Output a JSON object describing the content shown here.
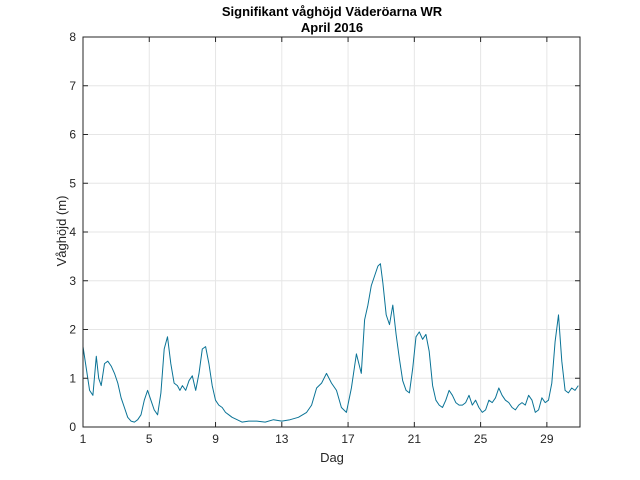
{
  "chart_data": {
    "type": "line",
    "title": "Signifikant våghöjd Väderöarna WR",
    "subtitle": "April 2016",
    "xlabel": "Dag",
    "ylabel": "Våghöjd (m)",
    "xlim": [
      1,
      31
    ],
    "ylim": [
      0,
      8
    ],
    "xticks": [
      1,
      5,
      9,
      13,
      17,
      21,
      25,
      29
    ],
    "yticks": [
      0,
      1,
      2,
      3,
      4,
      5,
      6,
      7,
      8
    ],
    "grid": true,
    "legend": "none",
    "colors": {
      "series": "#0a7396",
      "grid": "#e6e6e6",
      "axis": "#262626"
    },
    "series": [
      {
        "x": [
          1.0,
          1.2,
          1.4,
          1.6,
          1.8,
          1.95,
          2.1,
          2.3,
          2.5,
          2.7,
          2.9,
          3.1,
          3.3,
          3.5,
          3.7,
          3.9,
          4.1,
          4.3,
          4.5,
          4.7,
          4.9,
          5.1,
          5.3,
          5.5,
          5.7,
          5.9,
          6.1,
          6.3,
          6.5,
          6.7,
          6.85,
          7.0,
          7.2,
          7.4,
          7.6,
          7.8,
          8.0,
          8.2,
          8.4,
          8.6,
          8.8,
          9.0,
          9.2,
          9.4,
          9.6,
          9.8,
          10.0,
          10.3,
          10.6,
          11.0,
          11.5,
          12.0,
          12.5,
          13.0,
          13.5,
          14.0,
          14.5,
          14.8,
          15.1,
          15.4,
          15.7,
          16.0,
          16.3,
          16.6,
          16.9,
          17.2,
          17.5,
          17.8,
          18.0,
          18.2,
          18.4,
          18.6,
          18.8,
          18.95,
          19.1,
          19.3,
          19.5,
          19.7,
          19.9,
          20.1,
          20.3,
          20.5,
          20.7,
          20.9,
          21.1,
          21.3,
          21.5,
          21.7,
          21.9,
          22.1,
          22.3,
          22.5,
          22.7,
          22.9,
          23.1,
          23.3,
          23.5,
          23.7,
          23.9,
          24.1,
          24.3,
          24.5,
          24.7,
          24.9,
          25.1,
          25.3,
          25.5,
          25.7,
          25.9,
          26.1,
          26.3,
          26.5,
          26.7,
          26.9,
          27.1,
          27.3,
          27.5,
          27.7,
          27.9,
          28.1,
          28.3,
          28.5,
          28.7,
          28.9,
          29.1,
          29.3,
          29.5,
          29.7,
          29.9,
          30.1,
          30.3,
          30.5,
          30.7,
          30.9
        ],
        "y": [
          1.65,
          1.2,
          0.75,
          0.65,
          1.45,
          1.0,
          0.85,
          1.3,
          1.35,
          1.25,
          1.1,
          0.9,
          0.6,
          0.4,
          0.2,
          0.12,
          0.1,
          0.15,
          0.25,
          0.55,
          0.75,
          0.55,
          0.35,
          0.25,
          0.7,
          1.6,
          1.85,
          1.3,
          0.9,
          0.85,
          0.75,
          0.85,
          0.75,
          0.95,
          1.05,
          0.75,
          1.1,
          1.6,
          1.65,
          1.3,
          0.85,
          0.55,
          0.45,
          0.4,
          0.3,
          0.25,
          0.2,
          0.15,
          0.1,
          0.12,
          0.12,
          0.1,
          0.15,
          0.12,
          0.15,
          0.2,
          0.3,
          0.45,
          0.8,
          0.9,
          1.1,
          0.9,
          0.75,
          0.4,
          0.3,
          0.8,
          1.5,
          1.1,
          2.2,
          2.5,
          2.9,
          3.1,
          3.3,
          3.35,
          2.95,
          2.3,
          2.1,
          2.5,
          1.9,
          1.4,
          0.95,
          0.75,
          0.7,
          1.2,
          1.85,
          1.95,
          1.8,
          1.9,
          1.55,
          0.85,
          0.55,
          0.45,
          0.4,
          0.55,
          0.75,
          0.65,
          0.5,
          0.45,
          0.45,
          0.5,
          0.65,
          0.45,
          0.55,
          0.4,
          0.3,
          0.35,
          0.55,
          0.5,
          0.6,
          0.8,
          0.65,
          0.55,
          0.5,
          0.4,
          0.35,
          0.45,
          0.5,
          0.45,
          0.65,
          0.55,
          0.3,
          0.35,
          0.6,
          0.5,
          0.55,
          0.9,
          1.75,
          2.3,
          1.35,
          0.75,
          0.7,
          0.8,
          0.75,
          0.85
        ]
      }
    ]
  }
}
